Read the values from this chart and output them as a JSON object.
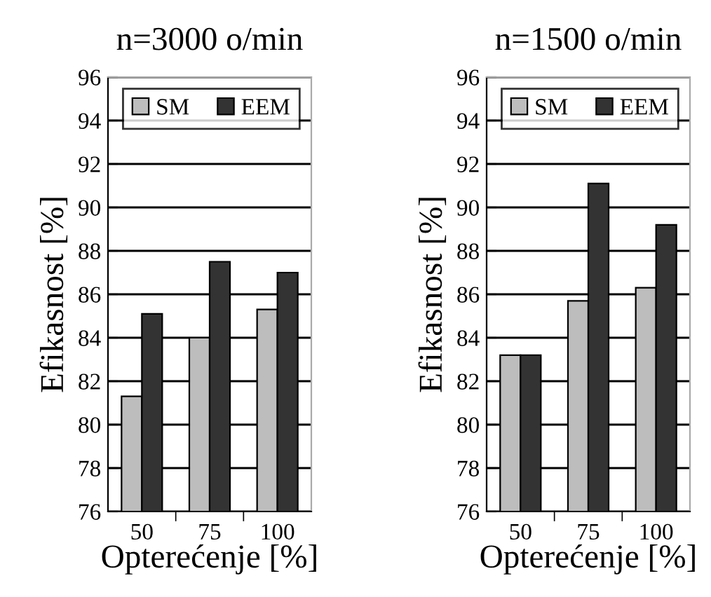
{
  "chart_data": [
    {
      "type": "bar",
      "title": "n=3000 o/min",
      "xlabel": "Opterećenje [%]",
      "ylabel": "Efikasnost [%]",
      "categories": [
        "50",
        "75",
        "100"
      ],
      "series": [
        {
          "name": "SM",
          "color": "#bdbdbd",
          "values": [
            81.3,
            84.0,
            85.3
          ]
        },
        {
          "name": "EEM",
          "color": "#333333",
          "values": [
            85.1,
            87.5,
            87.0
          ]
        }
      ],
      "ylim": [
        76,
        96
      ],
      "yticks": [
        76,
        78,
        80,
        82,
        84,
        86,
        88,
        90,
        92,
        94,
        96
      ],
      "grid": "y",
      "legend": "top"
    },
    {
      "type": "bar",
      "title": "n=1500 o/min",
      "xlabel": "Opterećenje [%]",
      "ylabel": "Efikasnost [%]",
      "categories": [
        "50",
        "75",
        "100"
      ],
      "series": [
        {
          "name": "SM",
          "color": "#bdbdbd",
          "values": [
            83.2,
            85.7,
            86.3
          ]
        },
        {
          "name": "EEM",
          "color": "#333333",
          "values": [
            83.2,
            91.1,
            89.2
          ]
        }
      ],
      "ylim": [
        76,
        96
      ],
      "yticks": [
        76,
        78,
        80,
        82,
        84,
        86,
        88,
        90,
        92,
        94,
        96
      ],
      "grid": "y",
      "legend": "top"
    }
  ]
}
